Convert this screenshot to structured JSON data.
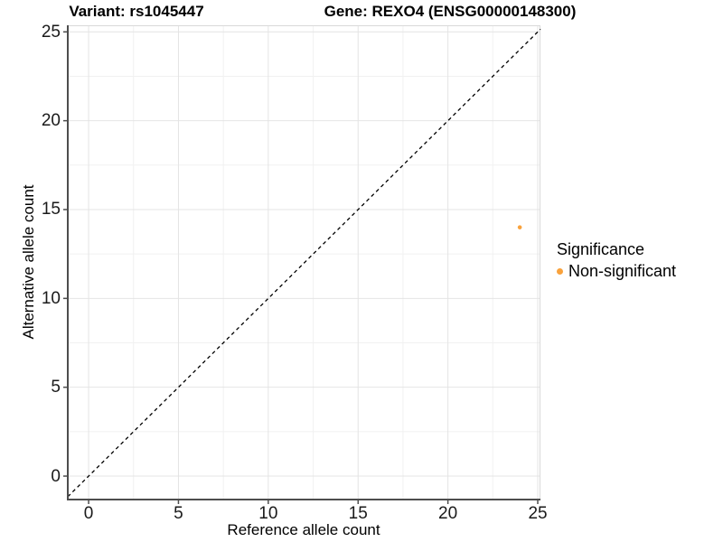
{
  "header": {
    "variant_title": "Variant: rs1045447",
    "gene_title": "Gene: REXO4 (ENSG00000148300)"
  },
  "legend": {
    "title": "Significance",
    "items": [
      {
        "label": "Non-significant",
        "marker": "dot-icon",
        "color": "#F9A23C"
      }
    ]
  },
  "colors": {
    "point": "#F9A23C",
    "grid_major": "#E4E4E4",
    "grid_minor": "#F1F1F1",
    "panel_border": "#D9D9D9",
    "axis_line": "#4D4D4D",
    "identity_line": "#000000",
    "background": "#FFFFFF",
    "text": "#000000"
  },
  "chart_data": {
    "type": "scatter",
    "title": "Variant: rs1045447    Gene: REXO4 (ENSG00000148300)",
    "xlabel": "Reference allele count",
    "ylabel": "Alternative allele count",
    "xlim": [
      -1.16,
      25.15
    ],
    "ylim": [
      -1.32,
      25.37
    ],
    "x_ticks": [
      0,
      5,
      10,
      15,
      20,
      25
    ],
    "y_ticks": [
      0,
      5,
      10,
      15,
      20,
      25
    ],
    "minor_tick_step": 2.5,
    "grid": true,
    "legend_position": "right-center",
    "series": [
      {
        "name": "Non-significant",
        "color": "#F9A23C",
        "point_radius": 2.3,
        "points": [
          {
            "x": 24,
            "y": 14
          }
        ]
      }
    ],
    "reference_line": {
      "kind": "identity",
      "equation": "y = x",
      "style": "dashed",
      "color": "#000000"
    }
  }
}
